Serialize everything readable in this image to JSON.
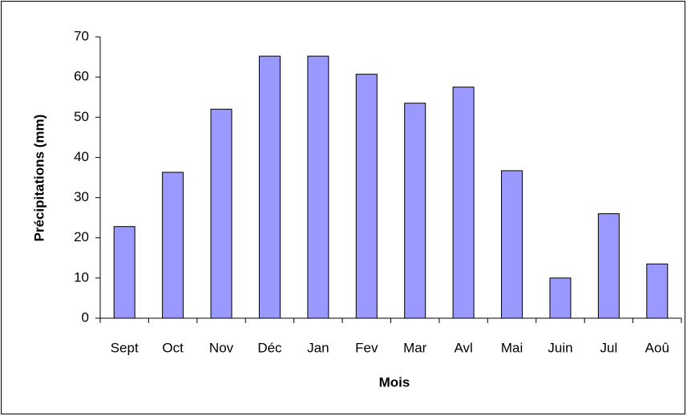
{
  "chart_data": {
    "type": "bar",
    "xlabel": "Mois",
    "ylabel": "Précipitations (mm)",
    "categories": [
      "Sept",
      "Oct",
      "Nov",
      "Déc",
      "Jan",
      "Fev",
      "Mar",
      "Avl",
      "Mai",
      "Juin",
      "Jul",
      "Aoû"
    ],
    "values": [
      22.8,
      36.3,
      52,
      65.2,
      65.2,
      60.7,
      53.5,
      57.5,
      36.7,
      10,
      26,
      13.5
    ],
    "color": "#9999ff",
    "ylim": [
      0,
      70
    ],
    "yticks": [
      0,
      10,
      20,
      30,
      40,
      50,
      60,
      70
    ],
    "grid": false
  }
}
